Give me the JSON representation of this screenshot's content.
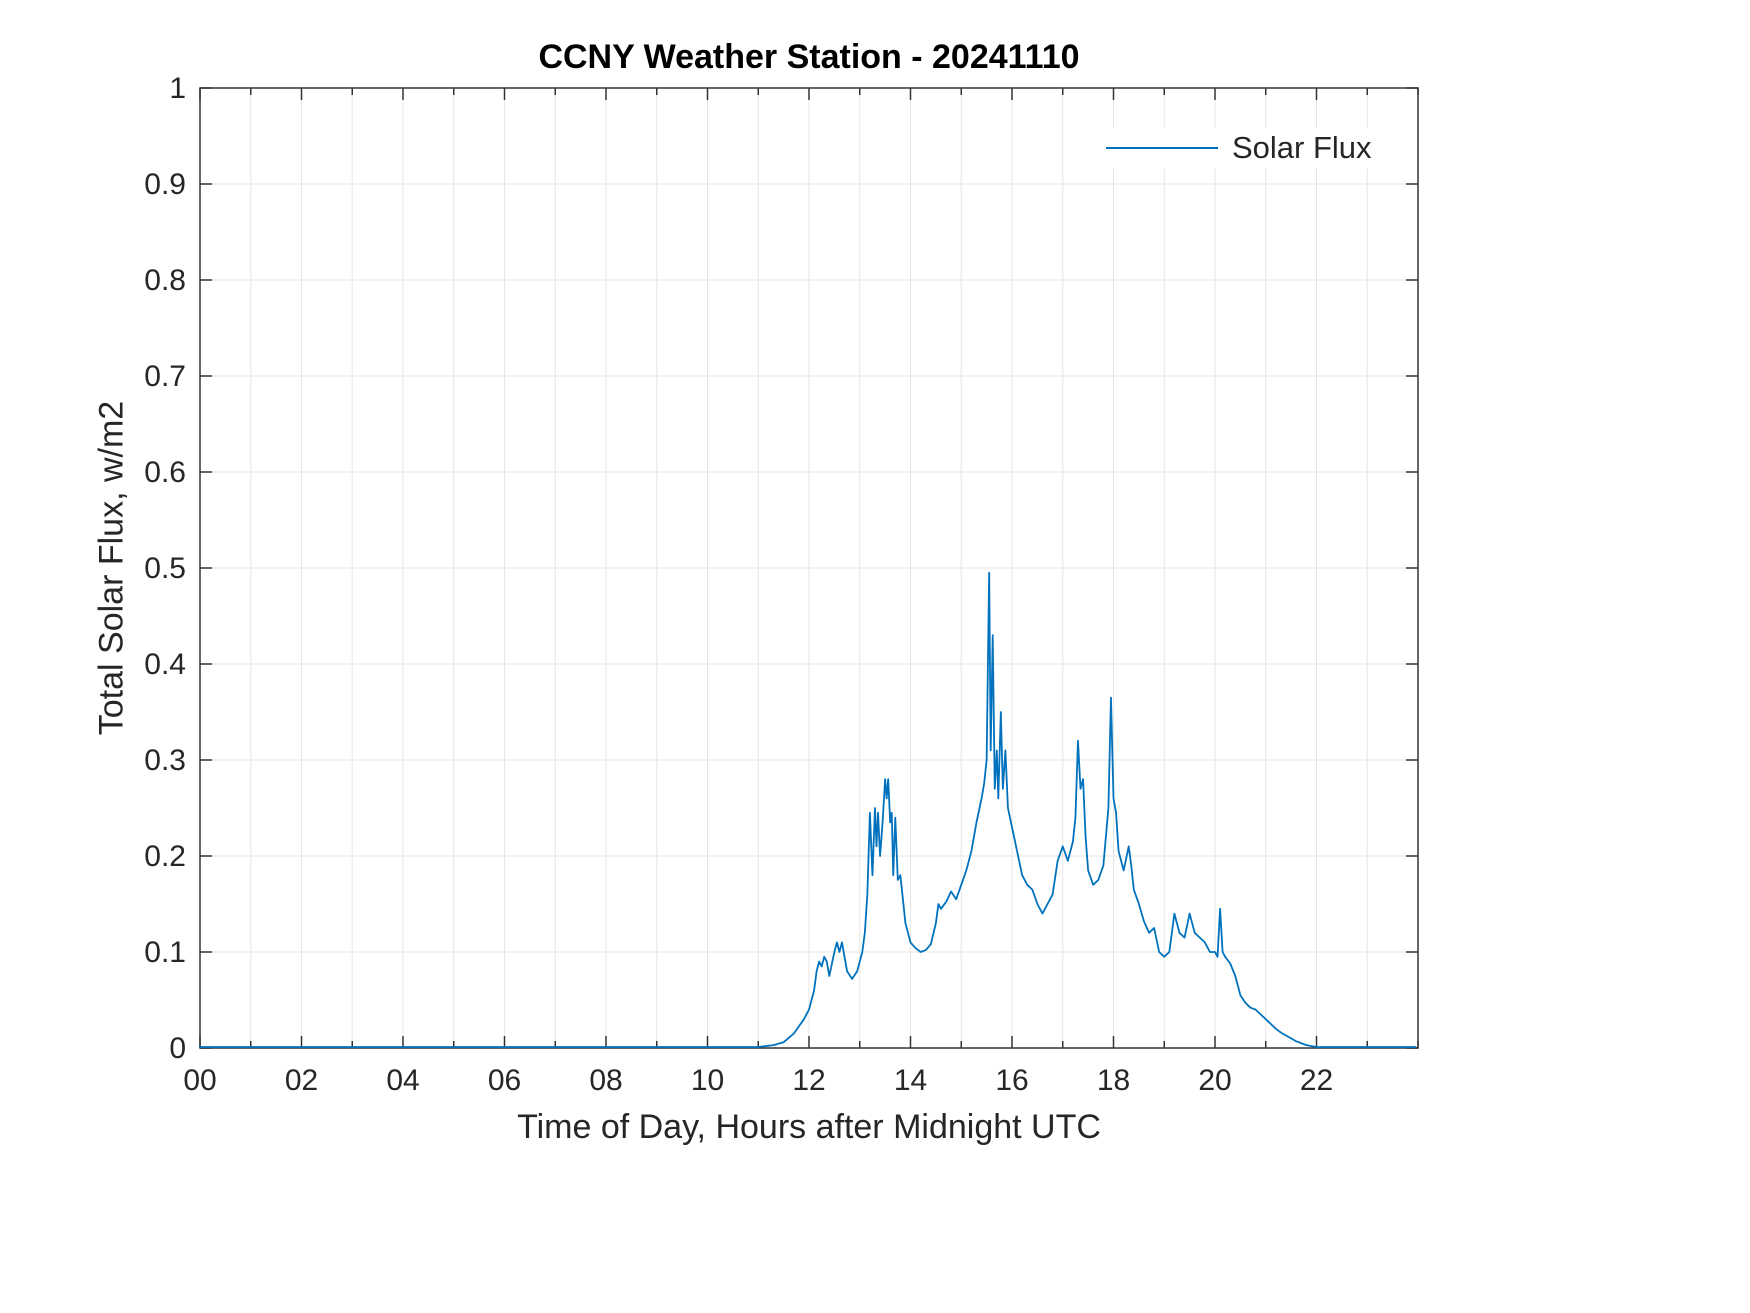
{
  "title": "CCNY Weather Station - 20241110",
  "legend": {
    "label": "Solar Flux"
  },
  "chart_data": {
    "type": "line",
    "title": "CCNY Weather Station - 20241110",
    "xlabel": "Time of Day, Hours after Midnight UTC",
    "ylabel": "Total Solar Flux, w/m2",
    "xlim": [
      0,
      24
    ],
    "ylim": [
      0,
      1
    ],
    "x_major_ticks": [
      0,
      2,
      4,
      6,
      8,
      10,
      12,
      14,
      16,
      18,
      20,
      22
    ],
    "x_tick_labels": [
      "00",
      "02",
      "04",
      "06",
      "08",
      "10",
      "12",
      "14",
      "16",
      "18",
      "20",
      "22"
    ],
    "x_minor_step": 1,
    "y_ticks": [
      0,
      0.1,
      0.2,
      0.3,
      0.4,
      0.5,
      0.6,
      0.7,
      0.8,
      0.9,
      1
    ],
    "y_tick_labels": [
      "0",
      "0.1",
      "0.2",
      "0.3",
      "0.4",
      "0.5",
      "0.6",
      "0.7",
      "0.8",
      "0.9",
      "1"
    ],
    "grid": true,
    "grid_color": "#e6e6e6",
    "axis_color": "#333333",
    "line_color": "#0072BD",
    "legend_position": "top-right",
    "series": [
      {
        "name": "Solar Flux",
        "points": [
          [
            0,
            0.001
          ],
          [
            2,
            0.001
          ],
          [
            4,
            0.001
          ],
          [
            6,
            0.001
          ],
          [
            8,
            0.001
          ],
          [
            10,
            0.001
          ],
          [
            11,
            0.001
          ],
          [
            11.3,
            0.003
          ],
          [
            11.5,
            0.006
          ],
          [
            11.7,
            0.015
          ],
          [
            11.9,
            0.03
          ],
          [
            12.0,
            0.04
          ],
          [
            12.1,
            0.06
          ],
          [
            12.15,
            0.08
          ],
          [
            12.2,
            0.09
          ],
          [
            12.25,
            0.085
          ],
          [
            12.3,
            0.095
          ],
          [
            12.35,
            0.09
          ],
          [
            12.4,
            0.075
          ],
          [
            12.5,
            0.1
          ],
          [
            12.55,
            0.11
          ],
          [
            12.6,
            0.1
          ],
          [
            12.65,
            0.11
          ],
          [
            12.7,
            0.095
          ],
          [
            12.75,
            0.08
          ],
          [
            12.85,
            0.072
          ],
          [
            12.95,
            0.08
          ],
          [
            13.05,
            0.1
          ],
          [
            13.1,
            0.12
          ],
          [
            13.15,
            0.16
          ],
          [
            13.2,
            0.245
          ],
          [
            13.25,
            0.18
          ],
          [
            13.3,
            0.25
          ],
          [
            13.33,
            0.21
          ],
          [
            13.36,
            0.245
          ],
          [
            13.4,
            0.2
          ],
          [
            13.45,
            0.235
          ],
          [
            13.5,
            0.28
          ],
          [
            13.53,
            0.26
          ],
          [
            13.56,
            0.28
          ],
          [
            13.6,
            0.235
          ],
          [
            13.63,
            0.245
          ],
          [
            13.66,
            0.18
          ],
          [
            13.7,
            0.24
          ],
          [
            13.75,
            0.175
          ],
          [
            13.8,
            0.18
          ],
          [
            13.9,
            0.13
          ],
          [
            14.0,
            0.11
          ],
          [
            14.1,
            0.104
          ],
          [
            14.2,
            0.1
          ],
          [
            14.3,
            0.102
          ],
          [
            14.4,
            0.108
          ],
          [
            14.5,
            0.13
          ],
          [
            14.55,
            0.15
          ],
          [
            14.6,
            0.145
          ],
          [
            14.7,
            0.152
          ],
          [
            14.8,
            0.163
          ],
          [
            14.9,
            0.155
          ],
          [
            15.0,
            0.17
          ],
          [
            15.1,
            0.185
          ],
          [
            15.2,
            0.205
          ],
          [
            15.3,
            0.235
          ],
          [
            15.4,
            0.26
          ],
          [
            15.45,
            0.275
          ],
          [
            15.5,
            0.3
          ],
          [
            15.55,
            0.495
          ],
          [
            15.58,
            0.31
          ],
          [
            15.62,
            0.43
          ],
          [
            15.66,
            0.27
          ],
          [
            15.7,
            0.31
          ],
          [
            15.73,
            0.26
          ],
          [
            15.78,
            0.35
          ],
          [
            15.82,
            0.27
          ],
          [
            15.87,
            0.31
          ],
          [
            15.92,
            0.25
          ],
          [
            16.0,
            0.23
          ],
          [
            16.1,
            0.205
          ],
          [
            16.2,
            0.18
          ],
          [
            16.3,
            0.17
          ],
          [
            16.4,
            0.165
          ],
          [
            16.5,
            0.15
          ],
          [
            16.6,
            0.14
          ],
          [
            16.7,
            0.15
          ],
          [
            16.8,
            0.16
          ],
          [
            16.9,
            0.195
          ],
          [
            17.0,
            0.21
          ],
          [
            17.1,
            0.195
          ],
          [
            17.2,
            0.215
          ],
          [
            17.25,
            0.24
          ],
          [
            17.3,
            0.32
          ],
          [
            17.35,
            0.27
          ],
          [
            17.4,
            0.28
          ],
          [
            17.45,
            0.22
          ],
          [
            17.5,
            0.185
          ],
          [
            17.6,
            0.17
          ],
          [
            17.7,
            0.175
          ],
          [
            17.8,
            0.19
          ],
          [
            17.9,
            0.25
          ],
          [
            17.95,
            0.365
          ],
          [
            18.0,
            0.26
          ],
          [
            18.05,
            0.245
          ],
          [
            18.1,
            0.205
          ],
          [
            18.2,
            0.185
          ],
          [
            18.3,
            0.21
          ],
          [
            18.35,
            0.19
          ],
          [
            18.4,
            0.165
          ],
          [
            18.5,
            0.15
          ],
          [
            18.6,
            0.132
          ],
          [
            18.7,
            0.12
          ],
          [
            18.8,
            0.125
          ],
          [
            18.9,
            0.1
          ],
          [
            19.0,
            0.095
          ],
          [
            19.1,
            0.1
          ],
          [
            19.2,
            0.14
          ],
          [
            19.3,
            0.12
          ],
          [
            19.4,
            0.115
          ],
          [
            19.5,
            0.14
          ],
          [
            19.6,
            0.12
          ],
          [
            19.7,
            0.115
          ],
          [
            19.8,
            0.11
          ],
          [
            19.9,
            0.1
          ],
          [
            20.0,
            0.1
          ],
          [
            20.05,
            0.095
          ],
          [
            20.1,
            0.145
          ],
          [
            20.15,
            0.1
          ],
          [
            20.2,
            0.095
          ],
          [
            20.3,
            0.088
          ],
          [
            20.4,
            0.075
          ],
          [
            20.5,
            0.055
          ],
          [
            20.6,
            0.047
          ],
          [
            20.7,
            0.042
          ],
          [
            20.8,
            0.04
          ],
          [
            20.9,
            0.035
          ],
          [
            21.0,
            0.03
          ],
          [
            21.1,
            0.025
          ],
          [
            21.2,
            0.02
          ],
          [
            21.3,
            0.016
          ],
          [
            21.4,
            0.013
          ],
          [
            21.5,
            0.01
          ],
          [
            21.6,
            0.007
          ],
          [
            21.8,
            0.003
          ],
          [
            22.0,
            0.001
          ],
          [
            22.5,
            0.001
          ],
          [
            23.0,
            0.001
          ],
          [
            23.5,
            0.001
          ],
          [
            23.95,
            0.001
          ]
        ]
      }
    ]
  }
}
